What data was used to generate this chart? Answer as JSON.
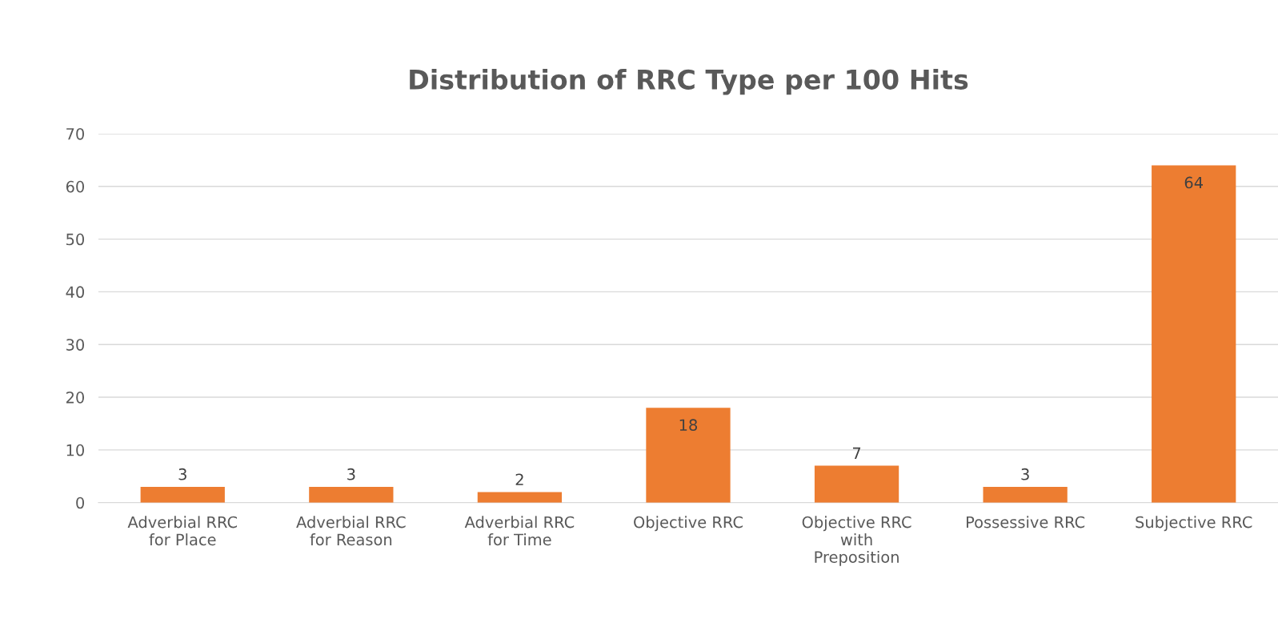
{
  "chart_data": {
    "type": "bar",
    "title": "Distribution of RRC Type per 100 Hits",
    "categories": [
      "Adverbial RRC\nfor Place",
      "Adverbial RRC\nfor Reason",
      "Adverbial RRC\nfor Time",
      "Objective RRC",
      "Objective RRC\nwith\nPreposition",
      "Possessive RRC",
      "Subjective RRC"
    ],
    "values": [
      3,
      3,
      2,
      18,
      7,
      3,
      64
    ],
    "color": "#ed7d31",
    "ylim": [
      0,
      70
    ],
    "yticks": [
      0,
      10,
      20,
      30,
      40,
      50,
      60,
      70
    ],
    "grid": "y",
    "data_labels": true
  }
}
